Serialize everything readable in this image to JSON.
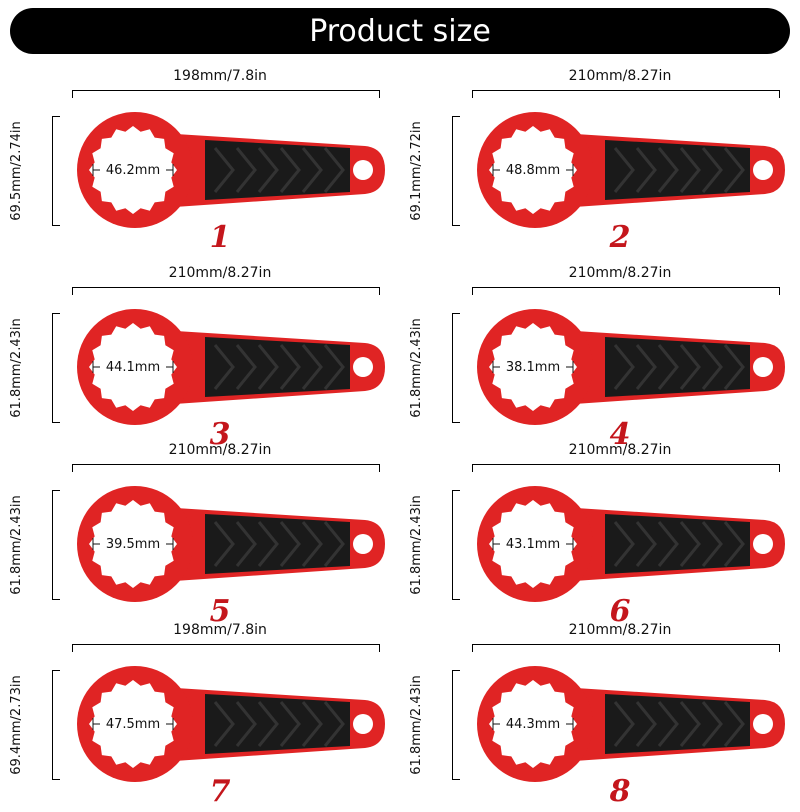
{
  "title": "Product size",
  "colors": {
    "banner": "#000000",
    "wrench_red": "#e02424",
    "grip": "#1a1a1a",
    "number": "#c4161c"
  },
  "items": [
    {
      "number": "1",
      "width": "198mm/7.8in",
      "height": "69.5mm/2.74in",
      "diameter": "46.2mm"
    },
    {
      "number": "2",
      "width": "210mm/8.27in",
      "height": "69.1mm/2.72in",
      "diameter": "48.8mm"
    },
    {
      "number": "3",
      "width": "210mm/8.27in",
      "height": "61.8mm/2.43in",
      "diameter": "44.1mm"
    },
    {
      "number": "4",
      "width": "210mm/8.27in",
      "height": "61.8mm/2.43in",
      "diameter": "38.1mm"
    },
    {
      "number": "5",
      "width": "210mm/8.27in",
      "height": "61.8mm/2.43in",
      "diameter": "39.5mm"
    },
    {
      "number": "6",
      "width": "210mm/8.27in",
      "height": "61.8mm/2.43in",
      "diameter": "43.1mm"
    },
    {
      "number": "7",
      "width": "198mm/7.8in",
      "height": "69.4mm/2.73in",
      "diameter": "47.5mm"
    },
    {
      "number": "8",
      "width": "210mm/8.27in",
      "height": "61.8mm/2.43in",
      "diameter": "44.3mm"
    }
  ]
}
